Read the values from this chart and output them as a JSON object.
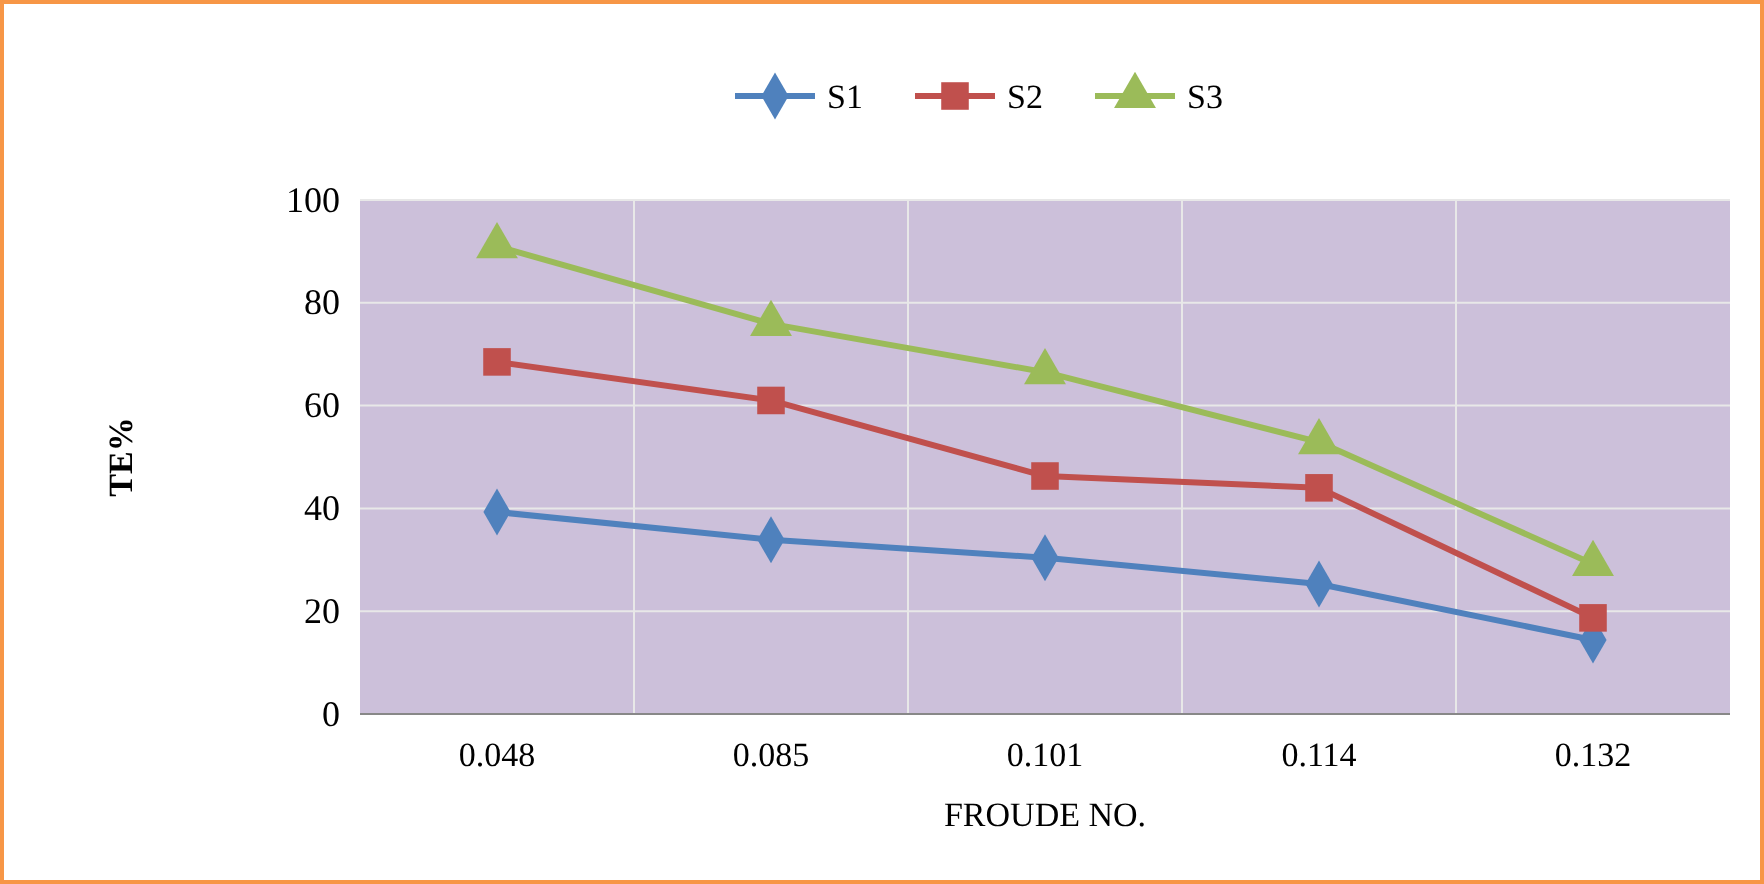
{
  "chart_data": {
    "type": "line",
    "xlabel": "FROUDE NO.",
    "ylabel": "TE%",
    "categories": [
      "0.048",
      "0.085",
      "0.101",
      "0.114",
      "0.132"
    ],
    "series": [
      {
        "name": "S1",
        "color": "#4f81bd",
        "marker": "diamond",
        "values": [
          39.3,
          33.9,
          30.4,
          25.3,
          14.4
        ]
      },
      {
        "name": "S2",
        "color": "#c0504d",
        "marker": "square",
        "values": [
          68.5,
          61,
          46.3,
          44,
          18.7
        ]
      },
      {
        "name": "S3",
        "color": "#9bbb59",
        "marker": "triangle",
        "values": [
          91,
          75.9,
          66.5,
          52.9,
          29.2
        ]
      }
    ],
    "ylim": [
      0,
      100
    ],
    "yticks": [
      0,
      20,
      40,
      60,
      80,
      100
    ],
    "grid": true,
    "legend": "top"
  }
}
